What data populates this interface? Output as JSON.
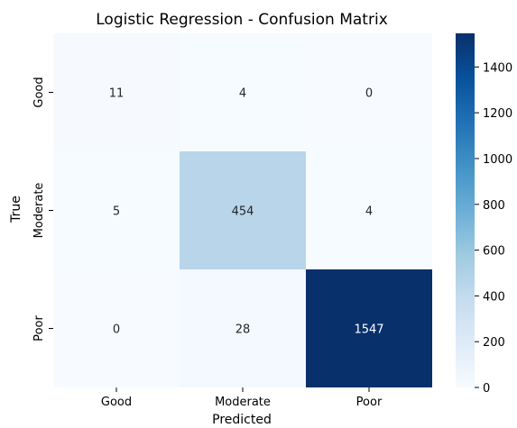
{
  "chart_data": {
    "type": "heatmap",
    "title": "Logistic Regression - Confusion Matrix",
    "xlabel": "Predicted",
    "ylabel": "True",
    "x_categories": [
      "Good",
      "Moderate",
      "Poor"
    ],
    "y_categories": [
      "Good",
      "Moderate",
      "Poor"
    ],
    "values": [
      [
        11,
        4,
        0
      ],
      [
        5,
        454,
        4
      ],
      [
        0,
        28,
        1547
      ]
    ],
    "colorbar": {
      "colormap": "Blues",
      "range": [
        0,
        1547
      ],
      "ticks": [
        0,
        200,
        400,
        600,
        800,
        1000,
        1200,
        1400
      ]
    }
  }
}
